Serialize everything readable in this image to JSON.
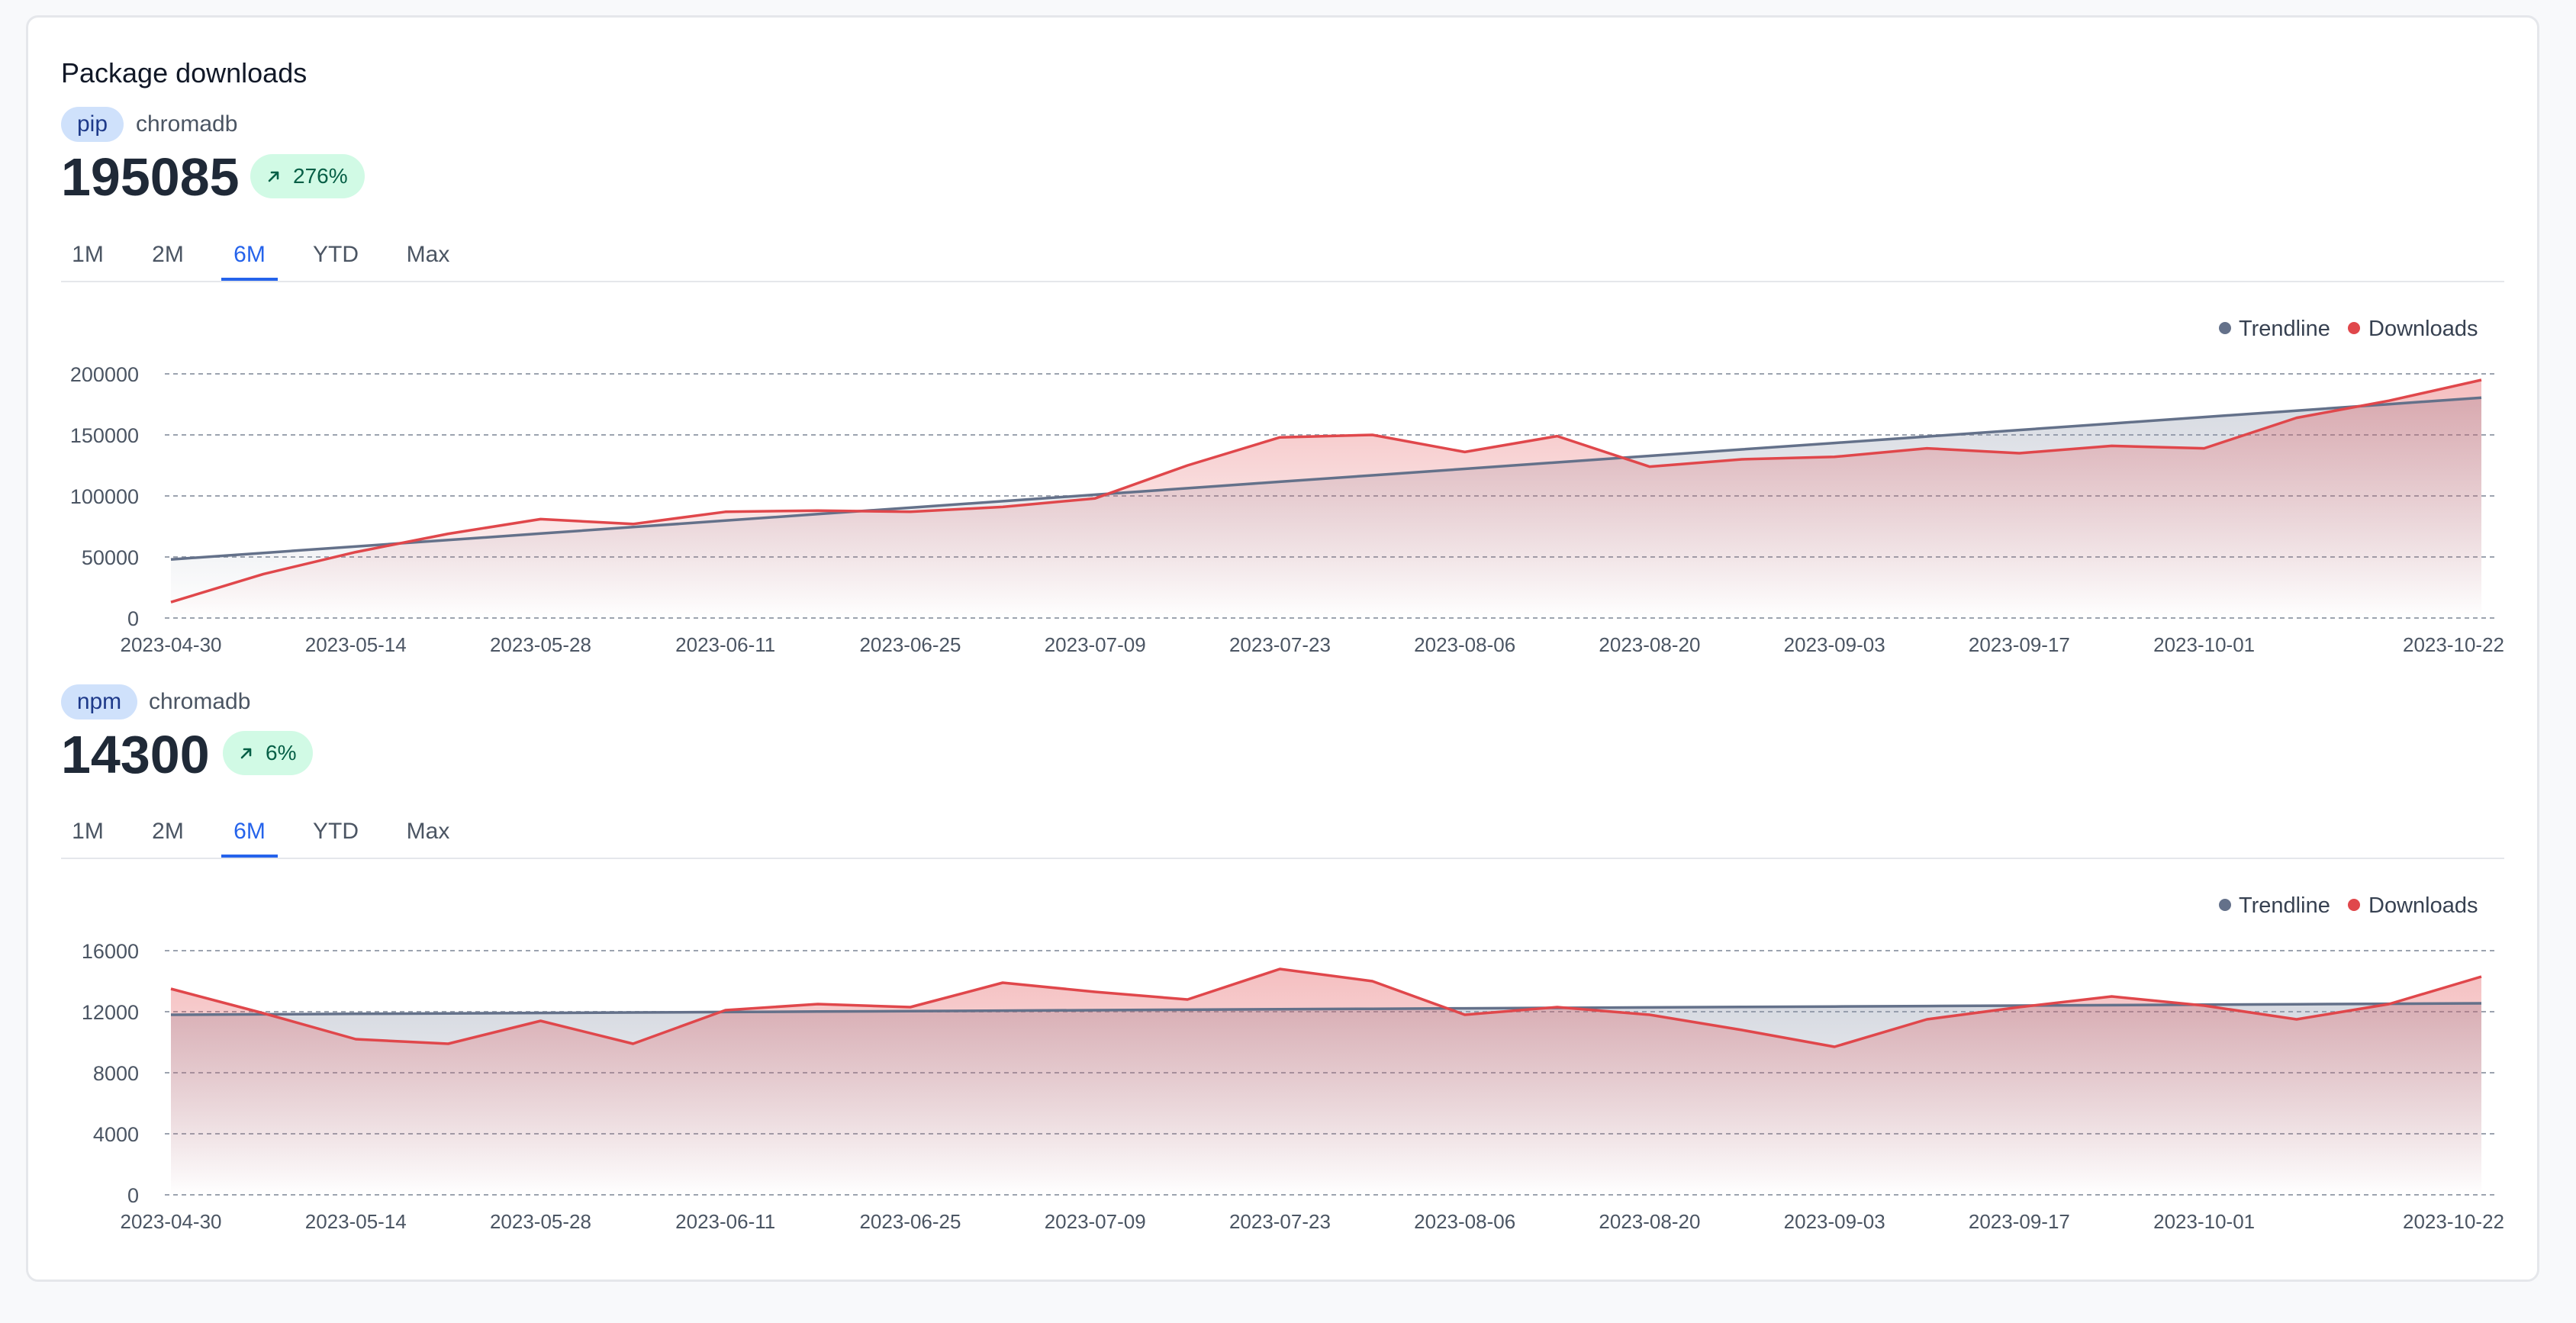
{
  "title": "Package downloads",
  "colors": {
    "trend": "#64718a",
    "downloads": "#e0474b",
    "active_tab": "#2563eb",
    "badge_bg": "#d1fae5",
    "badge_fg": "#065f46",
    "pill_bg": "#cfe1fb"
  },
  "icons": {
    "trend_up": "arrow-up-right-icon"
  },
  "sections": [
    {
      "registry": "pip",
      "package": "chromadb",
      "total": "195085",
      "change": "276%",
      "tabs": [
        "1M",
        "2M",
        "6M",
        "YTD",
        "Max"
      ],
      "active_tab": "6M"
    },
    {
      "registry": "npm",
      "package": "chromadb",
      "total": "14300",
      "change": "6%",
      "tabs": [
        "1M",
        "2M",
        "6M",
        "YTD",
        "Max"
      ],
      "active_tab": "6M"
    }
  ],
  "chart_data": [
    {
      "type": "area",
      "title": "",
      "xlabel": "",
      "ylabel": "",
      "ylim": [
        0,
        200000
      ],
      "yticks": [
        0,
        50000,
        100000,
        150000,
        200000
      ],
      "xtick_labels": [
        "2023-04-30",
        "2023-05-14",
        "2023-05-28",
        "2023-06-11",
        "2023-06-25",
        "2023-07-09",
        "2023-07-23",
        "2023-08-06",
        "2023-08-20",
        "2023-09-03",
        "2023-09-17",
        "2023-10-01",
        "2023-10-22"
      ],
      "grid": true,
      "legend_position": "top-right",
      "x": [
        "2023-04-30",
        "2023-05-07",
        "2023-05-14",
        "2023-05-21",
        "2023-05-28",
        "2023-06-04",
        "2023-06-11",
        "2023-06-18",
        "2023-06-25",
        "2023-07-02",
        "2023-07-09",
        "2023-07-16",
        "2023-07-23",
        "2023-07-30",
        "2023-08-06",
        "2023-08-13",
        "2023-08-20",
        "2023-08-27",
        "2023-09-03",
        "2023-09-10",
        "2023-09-17",
        "2023-09-24",
        "2023-10-01",
        "2023-10-08",
        "2023-10-15",
        "2023-10-22"
      ],
      "series": [
        {
          "name": "Trendline",
          "values": [
            48000,
            53300,
            58600,
            63900,
            69200,
            74500,
            79800,
            85100,
            90400,
            95700,
            101000,
            106300,
            111600,
            116900,
            122200,
            127500,
            132800,
            138100,
            143400,
            148700,
            154000,
            159300,
            164600,
            169900,
            175200,
            180500
          ]
        },
        {
          "name": "Downloads",
          "values": [
            13000,
            36000,
            54000,
            69000,
            81000,
            77000,
            87000,
            88000,
            87000,
            91000,
            98000,
            125000,
            148000,
            150000,
            136000,
            149000,
            124000,
            130000,
            132000,
            139000,
            135000,
            141000,
            139000,
            164000,
            178000,
            195000
          ]
        }
      ]
    },
    {
      "type": "area",
      "title": "",
      "xlabel": "",
      "ylabel": "",
      "ylim": [
        0,
        16000
      ],
      "yticks": [
        0,
        4000,
        8000,
        12000,
        16000
      ],
      "xtick_labels": [
        "2023-04-30",
        "2023-05-14",
        "2023-05-28",
        "2023-06-11",
        "2023-06-25",
        "2023-07-09",
        "2023-07-23",
        "2023-08-06",
        "2023-08-20",
        "2023-09-03",
        "2023-09-17",
        "2023-10-01",
        "2023-10-22"
      ],
      "grid": true,
      "legend_position": "top-right",
      "x": [
        "2023-04-30",
        "2023-05-07",
        "2023-05-14",
        "2023-05-21",
        "2023-05-28",
        "2023-06-04",
        "2023-06-11",
        "2023-06-18",
        "2023-06-25",
        "2023-07-02",
        "2023-07-09",
        "2023-07-16",
        "2023-07-23",
        "2023-07-30",
        "2023-08-06",
        "2023-08-13",
        "2023-08-20",
        "2023-08-27",
        "2023-09-03",
        "2023-09-10",
        "2023-09-17",
        "2023-09-24",
        "2023-10-01",
        "2023-10-08",
        "2023-10-15",
        "2023-10-22"
      ],
      "series": [
        {
          "name": "Trendline",
          "values": [
            11800,
            11830,
            11860,
            11890,
            11920,
            11950,
            11980,
            12010,
            12040,
            12070,
            12100,
            12130,
            12160,
            12190,
            12220,
            12250,
            12280,
            12310,
            12340,
            12370,
            12400,
            12430,
            12460,
            12490,
            12520,
            12550
          ]
        },
        {
          "name": "Downloads",
          "values": [
            13500,
            11900,
            10200,
            9900,
            11400,
            9900,
            12100,
            12500,
            12300,
            13900,
            13300,
            12800,
            14800,
            14000,
            11800,
            12300,
            11800,
            10800,
            9700,
            11500,
            12300,
            13000,
            12400,
            11500,
            12500,
            14300
          ]
        }
      ]
    }
  ]
}
